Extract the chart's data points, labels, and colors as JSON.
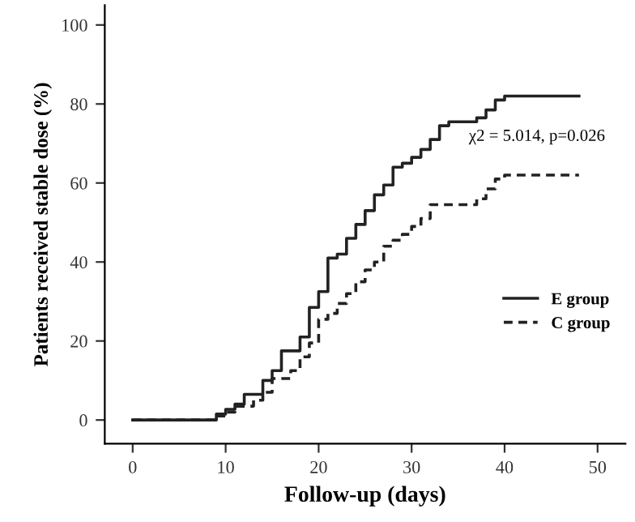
{
  "chart_data": {
    "type": "step",
    "xlabel": "Follow-up (days)",
    "ylabel": "Patients received stable dose (%)",
    "xlim": [
      -3,
      53
    ],
    "ylim": [
      -6,
      105
    ],
    "xticks": [
      0,
      10,
      20,
      30,
      40,
      50
    ],
    "yticks": [
      0,
      20,
      40,
      60,
      80,
      100
    ],
    "grid": false,
    "legend": "right",
    "marker": "none",
    "annotations": [
      "χ2 = 5.014, p=0.026"
    ],
    "series": [
      {
        "name": "E group",
        "color": "#222222",
        "line_style": "solid",
        "x": [
          0,
          9,
          10,
          11,
          12,
          14,
          15,
          16,
          18,
          19,
          20,
          21,
          22,
          23,
          24,
          25,
          26,
          27,
          28,
          29,
          30,
          31,
          32,
          33,
          34,
          37,
          38,
          39,
          40,
          48
        ],
        "values": [
          0,
          1.5,
          2.7,
          4,
          6.5,
          10,
          12.5,
          17.5,
          21,
          28.5,
          32.5,
          41,
          42,
          46,
          49.5,
          53,
          57,
          59.5,
          64,
          65,
          66.5,
          68.5,
          71,
          74.5,
          75.5,
          76.5,
          78.5,
          81,
          82,
          82
        ]
      },
      {
        "name": "C group",
        "color": "#222222",
        "line_style": "dashed",
        "x": [
          0,
          9,
          10,
          11,
          13,
          14,
          15,
          17,
          18,
          19,
          20,
          21,
          22,
          23,
          24,
          25,
          26,
          27,
          28,
          29,
          30,
          31,
          32,
          37,
          38,
          39,
          40,
          48
        ],
        "values": [
          0,
          1,
          2,
          3.5,
          5,
          7,
          10.5,
          12.5,
          16,
          19.5,
          25.5,
          27,
          29.5,
          32,
          35,
          38,
          40,
          44,
          45.5,
          47,
          49,
          51,
          54.5,
          56,
          58.5,
          61,
          62,
          62
        ]
      }
    ]
  }
}
